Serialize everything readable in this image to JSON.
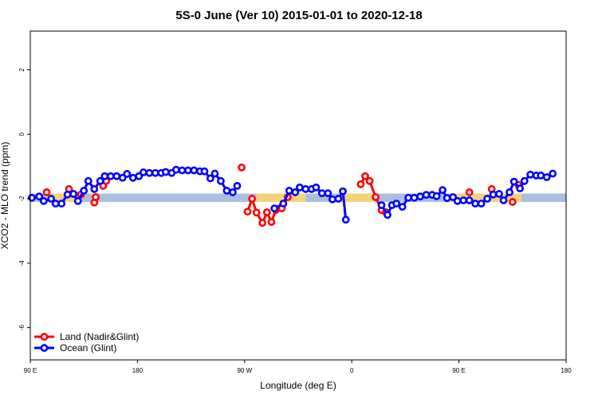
{
  "chart_data": {
    "type": "line",
    "title": "5S-0 June (Ver 10)   2015-01-01 to 2020-12-18",
    "xlabel": "Longitude (deg E)",
    "ylabel": "XCO2 - MLO trend (ppm)",
    "xlim": [
      90,
      450
    ],
    "ylim": [
      -7,
      3.2
    ],
    "x_ticks": [
      {
        "value": 90,
        "label": "90 E"
      },
      {
        "value": 162,
        "label": "180"
      },
      {
        "value": 234,
        "label": "90 W"
      },
      {
        "value": 306,
        "label": "0"
      },
      {
        "value": 378,
        "label": "90 E"
      },
      {
        "value": 450,
        "label": "180"
      }
    ],
    "y_ticks": [
      {
        "value": 2,
        "label": "2"
      },
      {
        "value": 0,
        "label": "0"
      },
      {
        "value": -2,
        "label": "-2"
      },
      {
        "value": -4,
        "label": "-4"
      },
      {
        "value": -6,
        "label": "-6"
      }
    ],
    "grid": false,
    "legend_position": "bottom-left",
    "band": {
      "center": -1.97,
      "half_width": 0.13,
      "segments": [
        {
          "from": 90,
          "to": 100,
          "color": "#a8bfdd"
        },
        {
          "from": 100,
          "to": 123,
          "color": "#f5d27a"
        },
        {
          "from": 123,
          "to": 242,
          "color": "#a8bfdd"
        },
        {
          "from": 242,
          "to": 275,
          "color": "#f5d27a"
        },
        {
          "from": 275,
          "to": 298,
          "color": "#a8bfdd"
        },
        {
          "from": 298,
          "to": 322,
          "color": "#f5d27a"
        },
        {
          "from": 322,
          "to": 372,
          "color": "#a8bfdd"
        },
        {
          "from": 372,
          "to": 420,
          "color": "#f5d27a"
        },
        {
          "from": 420,
          "to": 450,
          "color": "#a8bfdd"
        }
      ]
    },
    "series": [
      {
        "name": "Land (Nadir&Glint)",
        "color": "#ff0000",
        "segments": [
          [
            [
              101,
              -1.8
            ]
          ],
          [
            [
              116,
              -1.7
            ],
            [
              119,
              -1.85
            ],
            [
              124,
              -1.87
            ]
          ],
          [
            [
              134,
              -1.95
            ],
            [
              133,
              -2.12
            ]
          ],
          [
            [
              139,
              -1.6
            ],
            [
              141,
              -1.45
            ]
          ],
          [
            [
              232,
              -1.03
            ]
          ],
          [
            [
              236,
              -2.4
            ],
            [
              239,
              -2.0
            ],
            [
              242,
              -2.43
            ],
            [
              246,
              -2.75
            ],
            [
              249,
              -2.42
            ],
            [
              252,
              -2.72
            ],
            [
              255,
              -2.35
            ],
            [
              259,
              -2.3
            ],
            [
              263,
              -1.95
            ]
          ],
          [
            [
              312,
              -1.55
            ],
            [
              315,
              -1.3
            ],
            [
              318,
              -1.45
            ],
            [
              322,
              -1.95
            ],
            [
              326,
              -2.35
            ],
            [
              329,
              -2.42
            ]
          ],
          [
            [
              385,
              -1.8
            ]
          ],
          [
            [
              400,
              -1.7
            ]
          ],
          [
            [
              414,
              -2.1
            ]
          ],
          [
            [
              418,
              -1.57
            ]
          ]
        ]
      },
      {
        "name": "Ocean (Glint)",
        "color": "#0000ff",
        "segments": [
          [
            [
              91,
              -1.97
            ],
            [
              96,
              -1.93
            ],
            [
              99,
              -2.07
            ],
            [
              104,
              -2.0
            ],
            [
              107,
              -2.15
            ],
            [
              111,
              -2.15
            ],
            [
              115,
              -1.87
            ],
            [
              119,
              -1.85
            ],
            [
              122,
              -2.07
            ],
            [
              126,
              -1.75
            ],
            [
              129,
              -1.45
            ],
            [
              133,
              -1.7
            ],
            [
              137,
              -1.45
            ],
            [
              140,
              -1.3
            ],
            [
              144,
              -1.3
            ],
            [
              148,
              -1.3
            ],
            [
              152,
              -1.35
            ],
            [
              155,
              -1.23
            ],
            [
              159,
              -1.35
            ],
            [
              163,
              -1.3
            ],
            [
              166,
              -1.18
            ],
            [
              170,
              -1.2
            ],
            [
              174,
              -1.2
            ],
            [
              178,
              -1.2
            ],
            [
              181,
              -1.17
            ],
            [
              185,
              -1.2
            ],
            [
              188,
              -1.1
            ],
            [
              192,
              -1.12
            ],
            [
              196,
              -1.12
            ],
            [
              200,
              -1.12
            ],
            [
              204,
              -1.15
            ],
            [
              207,
              -1.15
            ],
            [
              211,
              -1.37
            ],
            [
              214,
              -1.22
            ],
            [
              218,
              -1.45
            ],
            [
              222,
              -1.75
            ],
            [
              226,
              -1.8
            ],
            [
              229,
              -1.6
            ]
          ],
          [
            [
              254,
              -2.3
            ],
            [
              260,
              -2.15
            ],
            [
              264,
              -1.75
            ],
            [
              268,
              -1.8
            ],
            [
              271,
              -1.65
            ],
            [
              275,
              -1.7
            ],
            [
              279,
              -1.7
            ],
            [
              282,
              -1.65
            ],
            [
              286,
              -1.83
            ],
            [
              290,
              -1.83
            ],
            [
              293,
              -2.02
            ],
            [
              297,
              -2.0
            ],
            [
              300,
              -1.77
            ],
            [
              302,
              -2.65
            ]
          ],
          [
            [
              326,
              -2.2
            ],
            [
              330,
              -2.5
            ],
            [
              333,
              -2.2
            ],
            [
              336,
              -2.15
            ],
            [
              340,
              -2.25
            ],
            [
              344,
              -1.97
            ],
            [
              348,
              -1.97
            ],
            [
              352,
              -1.93
            ],
            [
              356,
              -1.88
            ],
            [
              360,
              -1.88
            ],
            [
              363,
              -1.92
            ],
            [
              367,
              -1.73
            ],
            [
              370,
              -1.98
            ],
            [
              374,
              -1.95
            ],
            [
              377,
              -2.07
            ],
            [
              381,
              -2.05
            ],
            [
              385,
              -2.05
            ],
            [
              389,
              -2.15
            ],
            [
              393,
              -2.15
            ],
            [
              397,
              -2.0
            ],
            [
              401,
              -1.87
            ],
            [
              405,
              -1.85
            ],
            [
              408,
              -2.05
            ],
            [
              412,
              -1.8
            ],
            [
              415,
              -1.47
            ],
            [
              419,
              -1.68
            ],
            [
              422,
              -1.45
            ],
            [
              426,
              -1.25
            ],
            [
              430,
              -1.28
            ],
            [
              433,
              -1.28
            ],
            [
              437,
              -1.33
            ],
            [
              441,
              -1.22
            ]
          ]
        ]
      }
    ]
  }
}
